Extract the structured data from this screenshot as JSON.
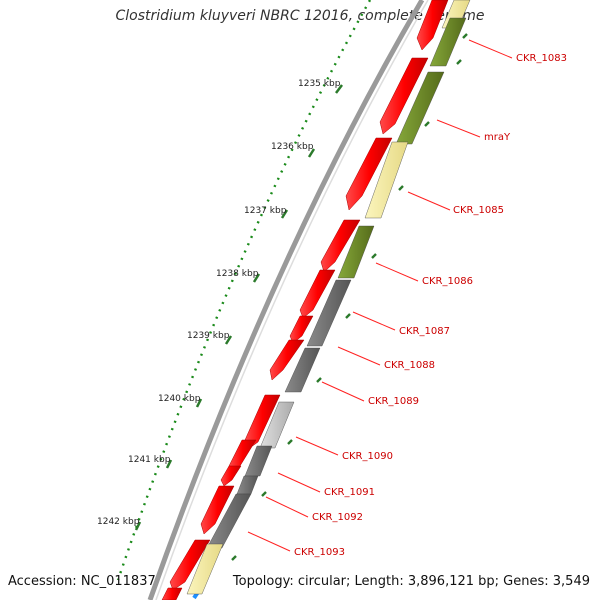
{
  "title": "Clostridium kluyveri NBRC 12016, complete genome",
  "accession_label": "Accession: NC_011837",
  "topology_label": "Topology: circular; Length: 3,896,121 bp; Genes: 3,549",
  "colors": {
    "forward_gene": "#ff0000",
    "olive_gene": "#6b8e23",
    "pale_yellow_gene": "#f0e68c",
    "dark_gray_gene": "#696969",
    "light_gray_gene": "#c8c8c8",
    "label": "#cc0000",
    "gc_ticks": "#228b22",
    "backbone": "#808080"
  },
  "kbp_labels": [
    "1235 kbp",
    "1236 kbp",
    "1237 kbp",
    "1238 kbp",
    "1239 kbp",
    "1240 kbp",
    "1241 kbp",
    "1242 kbp"
  ],
  "gene_labels": [
    "CKR_1083",
    "mraY",
    "CKR_1085",
    "CKR_1086",
    "CKR_1087",
    "CKR_1088",
    "CKR_1089",
    "CKR_1090",
    "CKR_1091",
    "CKR_1092",
    "CKR_1093"
  ]
}
